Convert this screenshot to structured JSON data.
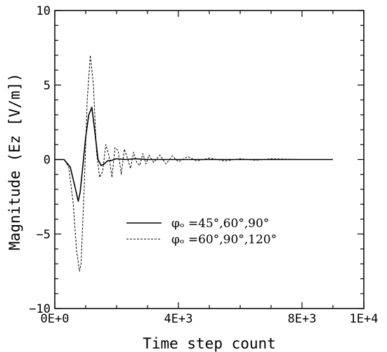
{
  "chart_data": {
    "type": "line",
    "title": "",
    "xlabel": "Time step count",
    "ylabel": "Magnitude (Ez [V/m])",
    "xlim": [
      0,
      10000
    ],
    "ylim": [
      -10,
      10
    ],
    "xticks": [
      0,
      4000,
      8000,
      10000
    ],
    "xtick_labels": [
      "0E+0",
      "4E+3",
      "8E+3",
      "1E+4"
    ],
    "yticks": [
      -10,
      -5,
      0,
      5,
      10
    ],
    "ytick_labels": [
      "−10",
      "−5",
      "0",
      "5",
      "10"
    ],
    "grid": false,
    "legend_position": "center-right",
    "series": [
      {
        "name": "φₒ =45°,60°,90°",
        "style": "solid",
        "color": "#000000",
        "x": [
          0,
          300,
          500,
          650,
          760,
          820,
          900,
          1000,
          1100,
          1200,
          1300,
          1400,
          1500,
          1600,
          1700,
          1850,
          2000,
          2300,
          2600,
          3000,
          4000,
          6000,
          8000,
          9000
        ],
        "y": [
          0,
          0,
          -0.5,
          -1.8,
          -2.8,
          -2.2,
          -0.6,
          1.5,
          3.0,
          3.5,
          1.8,
          0.0,
          -0.4,
          -0.3,
          -0.1,
          -0.05,
          0.05,
          0.0,
          0.05,
          0.0,
          0.0,
          0.0,
          0.0,
          0.0
        ]
      },
      {
        "name": "φₒ =60°,90°,120°",
        "style": "dashed",
        "color": "#000000",
        "x": [
          0,
          300,
          450,
          600,
          700,
          800,
          850,
          950,
          1050,
          1150,
          1250,
          1350,
          1450,
          1550,
          1650,
          1750,
          1850,
          1950,
          2050,
          2150,
          2250,
          2350,
          2450,
          2550,
          2650,
          2750,
          2850,
          2950,
          3050,
          3200,
          3400,
          3600,
          3800,
          4000,
          4300,
          4600,
          5000,
          5500,
          6000,
          6500,
          7000,
          8000,
          9000
        ],
        "y": [
          0,
          0,
          -0.5,
          -3.0,
          -6.0,
          -7.5,
          -7.0,
          -2.0,
          4.0,
          7.0,
          5.0,
          0.5,
          -1.2,
          -0.8,
          1.0,
          0.3,
          -1.2,
          0.8,
          0.6,
          -1.0,
          0.7,
          0.1,
          -0.6,
          0.5,
          -0.2,
          -0.4,
          0.4,
          -0.3,
          0.3,
          -0.2,
          0.3,
          -0.3,
          0.25,
          -0.15,
          0.2,
          -0.1,
          0.1,
          -0.1,
          0.05,
          -0.05,
          0.05,
          0.0,
          0.0
        ]
      }
    ]
  }
}
